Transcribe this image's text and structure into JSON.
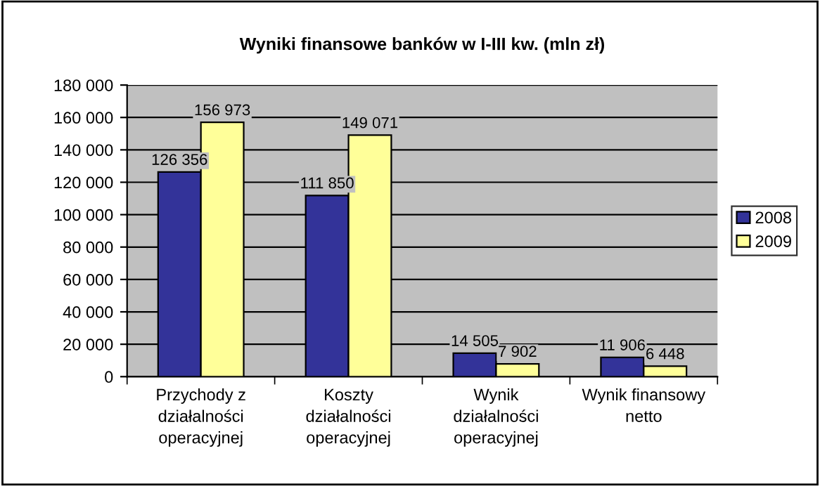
{
  "chart_data": {
    "type": "bar",
    "title": "Wyniki finansowe banków w I-III kw. (mln zł)",
    "categories": [
      "Przychody z\ndziałalności\noperacyjnej",
      "Koszty\ndziałalności\noperacyjnej",
      "Wynik\ndziałalności\noperacyjnej",
      "Wynik finansowy\nnetto"
    ],
    "series": [
      {
        "name": "2008",
        "color": "#333399",
        "values": [
          126356,
          111850,
          14505,
          11906
        ],
        "value_labels": [
          "126 356",
          "111 850",
          "14 505",
          "11 906"
        ]
      },
      {
        "name": "2009",
        "color": "#ffff99",
        "values": [
          156973,
          149071,
          7902,
          6448
        ],
        "value_labels": [
          "156 973",
          "149 071",
          "7 902",
          "6 448"
        ]
      }
    ],
    "ylim": [
      0,
      180000
    ],
    "yticks": [
      0,
      {
        "value": 20000,
        "label": "20 000"
      },
      {
        "value": 40000,
        "label": "40 000"
      },
      {
        "value": 60000,
        "label": "60 000"
      },
      {
        "value": 80000,
        "label": "80 000"
      },
      {
        "value": 100000,
        "label": "100 000"
      },
      {
        "value": 120000,
        "label": "120 000"
      },
      {
        "value": 140000,
        "label": "140 000"
      },
      {
        "value": 160000,
        "label": "160 000"
      },
      {
        "value": 180000,
        "label": "180 000"
      }
    ],
    "grid": "y",
    "legend": "right"
  }
}
